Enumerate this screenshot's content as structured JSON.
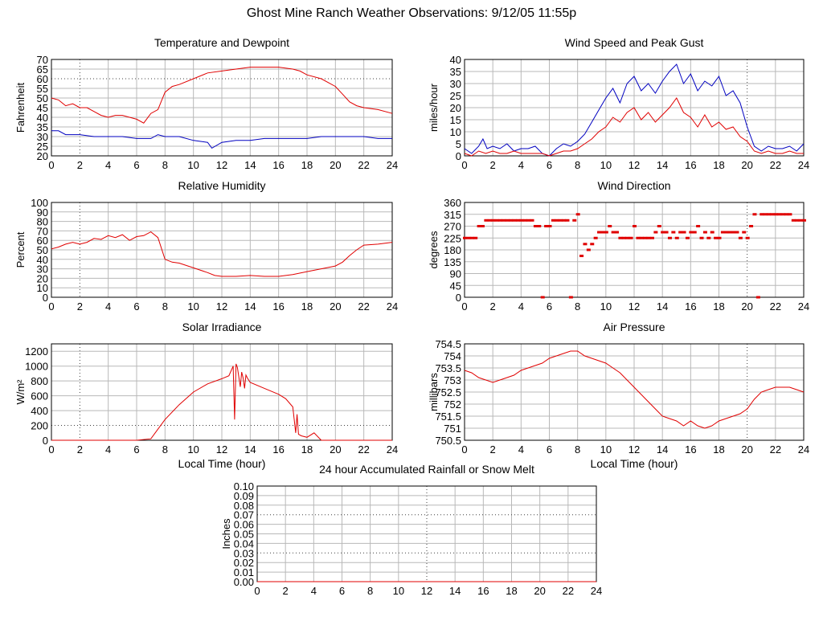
{
  "page": {
    "title": "Ghost Mine Ranch Weather Observations: 9/12/05 11:55p"
  },
  "chart_data": [
    {
      "id": "temperature",
      "type": "line",
      "title": "Temperature and Dewpoint",
      "xlabel": "",
      "ylabel": "Fahrenheit",
      "xlim": [
        0,
        24
      ],
      "ylim": [
        20,
        70
      ],
      "xticks": [
        0,
        2,
        4,
        6,
        8,
        10,
        12,
        14,
        16,
        18,
        20,
        22,
        24
      ],
      "yticks": [
        20,
        25,
        30,
        35,
        40,
        45,
        50,
        55,
        60,
        65,
        70
      ],
      "grid": true,
      "series": [
        {
          "color": "#e00000",
          "x": [
            0,
            0.5,
            1,
            1.5,
            2,
            2.5,
            3,
            3.5,
            4,
            4.5,
            5,
            5.5,
            6,
            6.5,
            7,
            7.5,
            8,
            8.5,
            9,
            10,
            11,
            12,
            13,
            14,
            15,
            16,
            17,
            17.5,
            18,
            19,
            20,
            20.5,
            21,
            21.5,
            22,
            23,
            24
          ],
          "y": [
            50,
            49,
            46,
            47,
            45,
            45,
            43,
            41,
            40,
            41,
            41,
            40,
            39,
            37,
            42,
            44,
            53,
            56,
            57,
            60,
            63,
            64,
            65,
            66,
            66,
            66,
            65,
            64,
            62,
            60,
            56,
            52,
            48,
            46,
            45,
            44,
            42
          ]
        },
        {
          "color": "#0000c0",
          "x": [
            0,
            0.5,
            1,
            2,
            3,
            4,
            5,
            6,
            7,
            7.5,
            8,
            9,
            10,
            11,
            11.3,
            12,
            13,
            14,
            15,
            16,
            17,
            18,
            19,
            20,
            21,
            22,
            23,
            24
          ],
          "y": [
            33,
            33,
            31,
            31,
            30,
            30,
            30,
            29,
            29,
            31,
            30,
            30,
            28,
            27,
            24,
            27,
            28,
            28,
            29,
            29,
            29,
            29,
            30,
            30,
            30,
            30,
            29,
            29
          ]
        }
      ]
    },
    {
      "id": "wind-speed",
      "type": "line",
      "title": "Wind Speed and Peak Gust",
      "xlabel": "",
      "ylabel": "miles/hour",
      "xlim": [
        0,
        24
      ],
      "ylim": [
        0,
        40
      ],
      "xticks": [
        0,
        2,
        4,
        6,
        8,
        10,
        12,
        14,
        16,
        18,
        20,
        22,
        24
      ],
      "yticks": [
        0,
        5,
        10,
        15,
        20,
        25,
        30,
        35,
        40
      ],
      "grid": true,
      "series": [
        {
          "color": "#0000c0",
          "x": [
            0,
            0.5,
            1,
            1.3,
            1.6,
            2,
            2.5,
            3,
            3.5,
            4,
            4.5,
            5,
            5.5,
            6,
            6.5,
            7,
            7.5,
            8,
            8.5,
            9,
            9.5,
            10,
            10.5,
            11,
            11.5,
            12,
            12.5,
            13,
            13.5,
            14,
            14.5,
            15,
            15.5,
            16,
            16.5,
            17,
            17.5,
            18,
            18.5,
            19,
            19.5,
            20,
            20.5,
            21,
            21.5,
            22,
            22.5,
            23,
            23.5,
            24
          ],
          "y": [
            3,
            1,
            4,
            7,
            3,
            4,
            3,
            5,
            2,
            3,
            3,
            4,
            1,
            0,
            3,
            5,
            4,
            6,
            9,
            14,
            19,
            24,
            28,
            22,
            30,
            33,
            27,
            30,
            26,
            31,
            35,
            38,
            30,
            34,
            27,
            31,
            29,
            33,
            25,
            27,
            22,
            12,
            4,
            2,
            4,
            3,
            3,
            4,
            2,
            5
          ]
        },
        {
          "color": "#e00000",
          "x": [
            0,
            0.5,
            1,
            1.5,
            2,
            2.5,
            3,
            3.5,
            4,
            4.5,
            5,
            5.5,
            6,
            6.5,
            7,
            7.5,
            8,
            8.5,
            9,
            9.5,
            10,
            10.5,
            11,
            11.5,
            12,
            12.5,
            13,
            13.5,
            14,
            14.5,
            15,
            15.5,
            16,
            16.5,
            17,
            17.5,
            18,
            18.5,
            19,
            19.5,
            20,
            20.5,
            21,
            21.5,
            22,
            22.5,
            23,
            23.5,
            24
          ],
          "y": [
            1,
            0,
            2,
            1,
            2,
            1,
            1,
            2,
            1,
            1,
            1,
            1,
            0,
            1,
            2,
            2,
            3,
            5,
            7,
            10,
            12,
            16,
            14,
            18,
            20,
            15,
            18,
            14,
            17,
            20,
            24,
            18,
            16,
            12,
            17,
            12,
            14,
            11,
            12,
            8,
            6,
            2,
            1,
            2,
            1,
            1,
            2,
            1,
            1
          ]
        }
      ]
    },
    {
      "id": "humidity",
      "type": "line",
      "title": "Relative Humidity",
      "xlabel": "",
      "ylabel": "Percent",
      "xlim": [
        0,
        24
      ],
      "ylim": [
        0,
        100
      ],
      "xticks": [
        0,
        2,
        4,
        6,
        8,
        10,
        12,
        14,
        16,
        18,
        20,
        22,
        24
      ],
      "yticks": [
        0,
        10,
        20,
        30,
        40,
        50,
        60,
        70,
        80,
        90,
        100
      ],
      "grid": true,
      "series": [
        {
          "color": "#e00000",
          "x": [
            0,
            0.5,
            1,
            1.5,
            2,
            2.5,
            3,
            3.5,
            4,
            4.5,
            5,
            5.5,
            6,
            6.5,
            7,
            7.5,
            8,
            8.5,
            9,
            10,
            11,
            11.5,
            12,
            13,
            14,
            15,
            16,
            17,
            18,
            19,
            20,
            20.5,
            21,
            21.5,
            22,
            23,
            24
          ],
          "y": [
            51,
            53,
            56,
            58,
            56,
            58,
            62,
            61,
            65,
            63,
            66,
            60,
            64,
            65,
            69,
            63,
            40,
            37,
            36,
            31,
            26,
            23,
            22,
            22,
            23,
            22,
            22,
            24,
            27,
            30,
            33,
            37,
            44,
            50,
            55,
            56,
            58
          ]
        }
      ]
    },
    {
      "id": "wind-direction",
      "type": "scatter",
      "title": "Wind Direction",
      "xlabel": "",
      "ylabel": "degrees",
      "xlim": [
        0,
        24
      ],
      "ylim": [
        0,
        360
      ],
      "xticks": [
        0,
        2,
        4,
        6,
        8,
        10,
        12,
        14,
        16,
        18,
        20,
        22,
        24
      ],
      "yticks": [
        0,
        45,
        90,
        135,
        180,
        225,
        270,
        315,
        360
      ],
      "grid": true,
      "series": [
        {
          "color": "#e00000",
          "x": [
            0,
            0.25,
            0.5,
            0.75,
            1,
            1.25,
            1.5,
            1.75,
            2,
            2.25,
            2.5,
            2.75,
            3,
            3.25,
            3.5,
            3.75,
            4,
            4.25,
            4.5,
            4.75,
            5,
            5.25,
            5.5,
            5.75,
            6,
            6.25,
            6.5,
            6.75,
            7,
            7.25,
            7.5,
            7.75,
            8,
            8.25,
            8.5,
            8.75,
            9,
            9.25,
            9.5,
            9.75,
            10,
            10.25,
            10.5,
            10.75,
            11,
            11.25,
            11.5,
            11.75,
            12,
            12.25,
            12.5,
            12.75,
            13,
            13.25,
            13.5,
            13.75,
            14,
            14.25,
            14.5,
            14.75,
            15,
            15.25,
            15.5,
            15.75,
            16,
            16.25,
            16.5,
            16.75,
            17,
            17.25,
            17.5,
            17.75,
            18,
            18.25,
            18.5,
            18.75,
            19,
            19.25,
            19.5,
            19.75,
            20,
            20.25,
            20.5,
            20.75,
            21,
            21.25,
            21.5,
            21.75,
            22,
            22.25,
            22.5,
            22.75,
            23,
            23.25,
            23.5,
            23.75,
            24
          ],
          "y": [
            225,
            225,
            225,
            225,
            270,
            270,
            292,
            292,
            292,
            292,
            292,
            292,
            292,
            292,
            292,
            292,
            292,
            292,
            292,
            292,
            270,
            270,
            0,
            270,
            270,
            292,
            292,
            292,
            292,
            292,
            0,
            292,
            315,
            157,
            202,
            180,
            202,
            225,
            247,
            247,
            247,
            270,
            247,
            247,
            225,
            225,
            225,
            225,
            270,
            225,
            225,
            225,
            225,
            225,
            247,
            270,
            247,
            247,
            225,
            247,
            225,
            247,
            247,
            225,
            247,
            247,
            270,
            225,
            247,
            225,
            247,
            225,
            225,
            247,
            247,
            247,
            247,
            247,
            225,
            247,
            225,
            270,
            315,
            0,
            315,
            315,
            315,
            315,
            315,
            315,
            315,
            315,
            315,
            292,
            292,
            292,
            292
          ]
        }
      ]
    },
    {
      "id": "solar",
      "type": "line",
      "title": "Solar Irradiance",
      "xlabel": "Local Time (hour)",
      "ylabel": "W/m²",
      "xlim": [
        0,
        24
      ],
      "ylim": [
        0,
        1300
      ],
      "xticks": [
        0,
        2,
        4,
        6,
        8,
        10,
        12,
        14,
        16,
        18,
        20,
        22,
        24
      ],
      "yticks": [
        0,
        200,
        400,
        600,
        800,
        1000,
        1200
      ],
      "grid": true,
      "series": [
        {
          "color": "#e00000",
          "x": [
            0,
            6,
            7,
            7.5,
            8,
            9,
            10,
            11,
            12,
            12.5,
            12.8,
            12.9,
            13.0,
            13.1,
            13.3,
            13.4,
            13.5,
            13.6,
            13.7,
            13.8,
            14,
            15,
            16,
            16.5,
            17,
            17.2,
            17.3,
            17.4,
            17.6,
            18,
            18.5,
            19,
            20,
            24
          ],
          "y": [
            0,
            0,
            20,
            150,
            280,
            480,
            650,
            760,
            830,
            870,
            1000,
            280,
            1030,
            980,
            720,
            920,
            840,
            700,
            880,
            840,
            780,
            700,
            620,
            560,
            450,
            100,
            350,
            80,
            60,
            40,
            100,
            0,
            0,
            0
          ]
        }
      ]
    },
    {
      "id": "pressure",
      "type": "line",
      "title": "Air Pressure",
      "xlabel": "Local Time (hour)",
      "ylabel": "millibars",
      "xlim": [
        0,
        24
      ],
      "ylim": [
        750.5,
        754.5
      ],
      "xticks": [
        0,
        2,
        4,
        6,
        8,
        10,
        12,
        14,
        16,
        18,
        20,
        22,
        24
      ],
      "yticks": [
        750.5,
        751.0,
        751.5,
        752.0,
        752.5,
        753.0,
        753.5,
        754.0,
        754.5
      ],
      "grid": true,
      "series": [
        {
          "color": "#e00000",
          "x": [
            0,
            0.5,
            1,
            1.5,
            2,
            2.5,
            3,
            3.5,
            4,
            4.5,
            5,
            5.5,
            6,
            6.5,
            7,
            7.5,
            8,
            8.5,
            9,
            9.5,
            10,
            10.5,
            11,
            11.5,
            12,
            12.5,
            13,
            13.5,
            14,
            14.5,
            15,
            15.5,
            16,
            16.5,
            17,
            17.5,
            18,
            18.5,
            19,
            19.5,
            20,
            20.5,
            21,
            21.5,
            22,
            22.5,
            23,
            23.5,
            24
          ],
          "y": [
            753.4,
            753.3,
            753.1,
            753.0,
            752.9,
            753.0,
            753.1,
            753.2,
            753.4,
            753.5,
            753.6,
            753.7,
            753.9,
            754.0,
            754.1,
            754.2,
            754.2,
            754.0,
            753.9,
            753.8,
            753.7,
            753.5,
            753.3,
            753.0,
            752.7,
            752.4,
            752.1,
            751.8,
            751.5,
            751.4,
            751.3,
            751.1,
            751.3,
            751.1,
            751.0,
            751.1,
            751.3,
            751.4,
            751.5,
            751.6,
            751.8,
            752.2,
            752.5,
            752.6,
            752.7,
            752.7,
            752.7,
            752.6,
            752.5
          ]
        }
      ]
    },
    {
      "id": "rainfall",
      "type": "line",
      "title": "24 hour Accumulated Rainfall or Snow Melt",
      "xlabel": "",
      "ylabel": "Inches",
      "xlim": [
        0,
        24
      ],
      "ylim": [
        0,
        0.1
      ],
      "xticks": [
        0,
        2,
        4,
        6,
        8,
        10,
        12,
        14,
        16,
        18,
        20,
        22,
        24
      ],
      "yticks": [
        "0.00",
        "0.01",
        "0.02",
        "0.03",
        "0.04",
        "0.05",
        "0.06",
        "0.07",
        "0.08",
        "0.09",
        "0.10"
      ],
      "grid": true,
      "series": [
        {
          "color": "#e00000",
          "x": [
            0,
            24
          ],
          "y": [
            0,
            0
          ]
        }
      ]
    }
  ]
}
